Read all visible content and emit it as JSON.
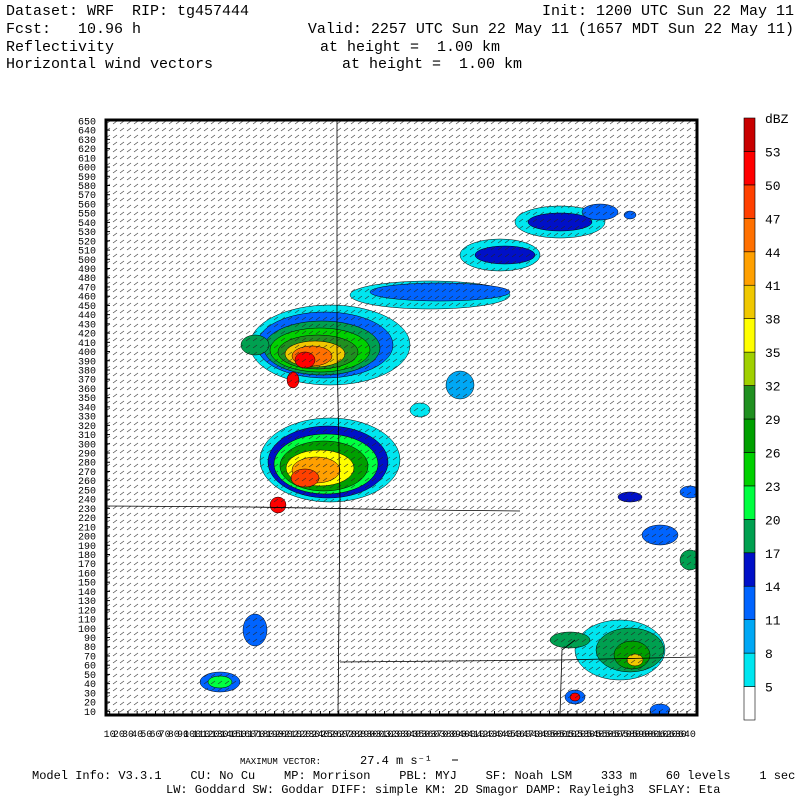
{
  "header": {
    "dataset": "Dataset: WRF  RIP: tg457444",
    "init": "Init: 1200 UTC Sun 22 May 11",
    "forecast": "Fcst:   10.96 h",
    "valid": "Valid: 2257 UTC Sun 22 May 11 (1657 MDT Sun 22 May 11)",
    "field1": "Reflectivity",
    "field1_level": "at height =  1.00 km",
    "field2": "Horizontal wind vectors",
    "field2_level": "at height =  1.00 km"
  },
  "axes": {
    "xlim": [
      6,
      651
    ],
    "ylim": [
      6,
      651
    ],
    "xticks": [
      10,
      20,
      30,
      40,
      50,
      60,
      70,
      80,
      90,
      100,
      110,
      120,
      130,
      140,
      150,
      160,
      170,
      180,
      190,
      200,
      210,
      220,
      230,
      240,
      250,
      260,
      270,
      280,
      290,
      300,
      310,
      320,
      330,
      340,
      350,
      360,
      370,
      380,
      390,
      400,
      410,
      420,
      430,
      440,
      450,
      460,
      470,
      480,
      490,
      500,
      510,
      520,
      530,
      540,
      550,
      560,
      570,
      580,
      590,
      600,
      610,
      620,
      630,
      640
    ],
    "yticks": [
      10,
      20,
      30,
      40,
      50,
      60,
      70,
      80,
      90,
      100,
      110,
      120,
      130,
      140,
      150,
      160,
      170,
      180,
      190,
      200,
      210,
      220,
      230,
      240,
      250,
      260,
      270,
      280,
      290,
      300,
      310,
      320,
      330,
      340,
      350,
      360,
      370,
      380,
      390,
      400,
      410,
      420,
      430,
      440,
      450,
      460,
      470,
      480,
      490,
      500,
      510,
      520,
      530,
      540,
      550,
      560,
      570,
      580,
      590,
      600,
      610,
      620,
      630,
      640,
      650
    ]
  },
  "colorbar": {
    "unit": "dBZ",
    "levels": [
      5,
      8,
      11,
      14,
      17,
      20,
      23,
      26,
      29,
      32,
      35,
      38,
      41,
      44,
      47,
      50,
      53
    ],
    "colors": [
      "#ffffff",
      "#00e6f0",
      "#00a8f5",
      "#0064ff",
      "#0010c8",
      "#00a050",
      "#00ff40",
      "#00d000",
      "#00a000",
      "#209020",
      "#a0d000",
      "#ffff00",
      "#f0c800",
      "#ffa000",
      "#ff7000",
      "#ff4000",
      "#ff0000",
      "#c80000"
    ]
  },
  "footer": {
    "max_vector_label": "MAXIMUM VECTOR:",
    "max_vector": "27.4 m s⁻¹",
    "model_info": "Model Info: V3.3.1    CU: No Cu    MP: Morrison    PBL: MYJ    SF: Noah LSM    333 m    60 levels    1 sec",
    "physics_info": "LW: Goddard SW: Goddar DIFF: simple KM: 2D Smagor DAMP: Rayleigh3  SFLAY: Eta"
  }
}
